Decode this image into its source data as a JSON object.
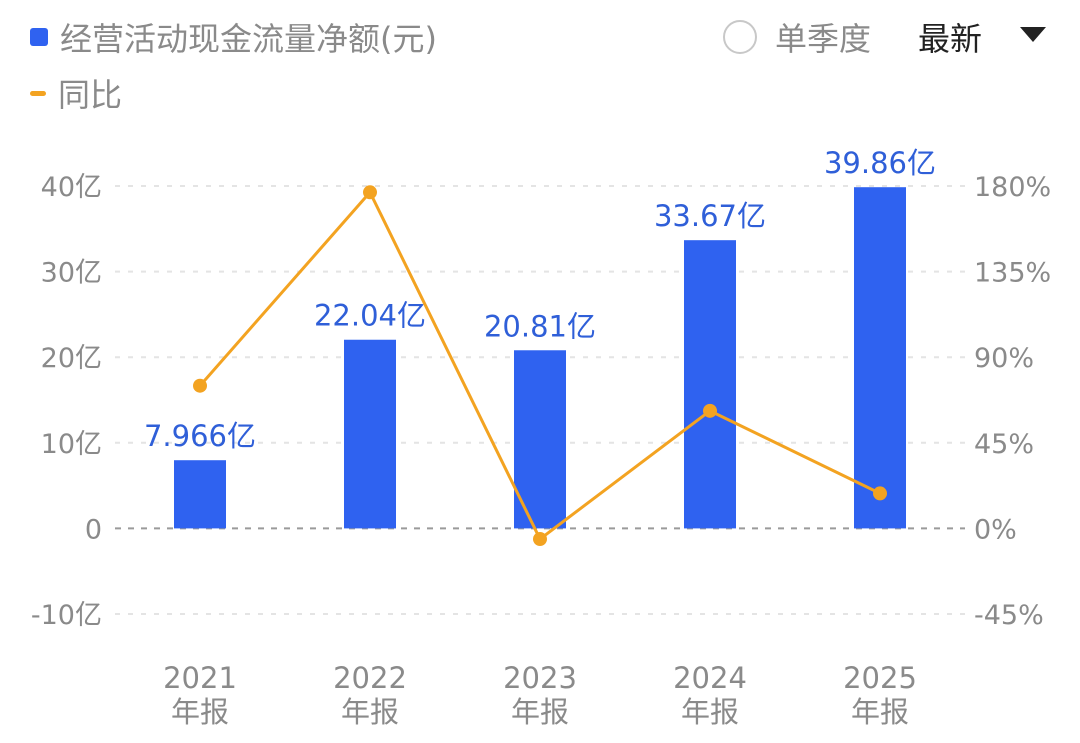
{
  "legend": {
    "bar_label": "经营活动现金流量净额(元)",
    "line_label": "同比"
  },
  "controls": {
    "quarter_label": "单季度",
    "period_select": "最新"
  },
  "colors": {
    "bar": "#2f62f0",
    "line": "#f3a321",
    "label_blue": "#2f5fd8",
    "axis_text": "#8a8a8a",
    "grid": "#e4e4e4",
    "zero_line": "#9a9a9a"
  },
  "chart_data": {
    "type": "bar",
    "categories": [
      [
        "2021",
        "年报"
      ],
      [
        "2022",
        "年报"
      ],
      [
        "2023",
        "年报"
      ],
      [
        "2024",
        "年报"
      ],
      [
        "2025",
        "年报"
      ]
    ],
    "series": [
      {
        "name": "经营活动现金流量净额(元)",
        "type": "bar",
        "axis": "left",
        "values": [
          7.966,
          22.04,
          20.81,
          33.67,
          39.86
        ],
        "data_labels": [
          "7.966亿",
          "22.04亿",
          "20.81亿",
          "33.67亿",
          "39.86亿"
        ]
      },
      {
        "name": "同比",
        "type": "line",
        "axis": "right",
        "values": [
          75,
          176.7,
          -5.6,
          61.8,
          18.4
        ]
      }
    ],
    "left_axis": {
      "ylim": [
        -10,
        40
      ],
      "ticks": [
        40,
        30,
        20,
        10,
        0,
        -10
      ],
      "tick_labels": [
        "40亿",
        "30亿",
        "20亿",
        "10亿",
        "0",
        "-10亿"
      ]
    },
    "right_axis": {
      "ylim": [
        -45,
        180
      ],
      "ticks": [
        180,
        135,
        90,
        45,
        0,
        -45
      ],
      "tick_labels": [
        "180%",
        "135%",
        "90%",
        "45%",
        "0%",
        "-45%"
      ]
    },
    "grid": true,
    "legend_position": "top-left"
  }
}
